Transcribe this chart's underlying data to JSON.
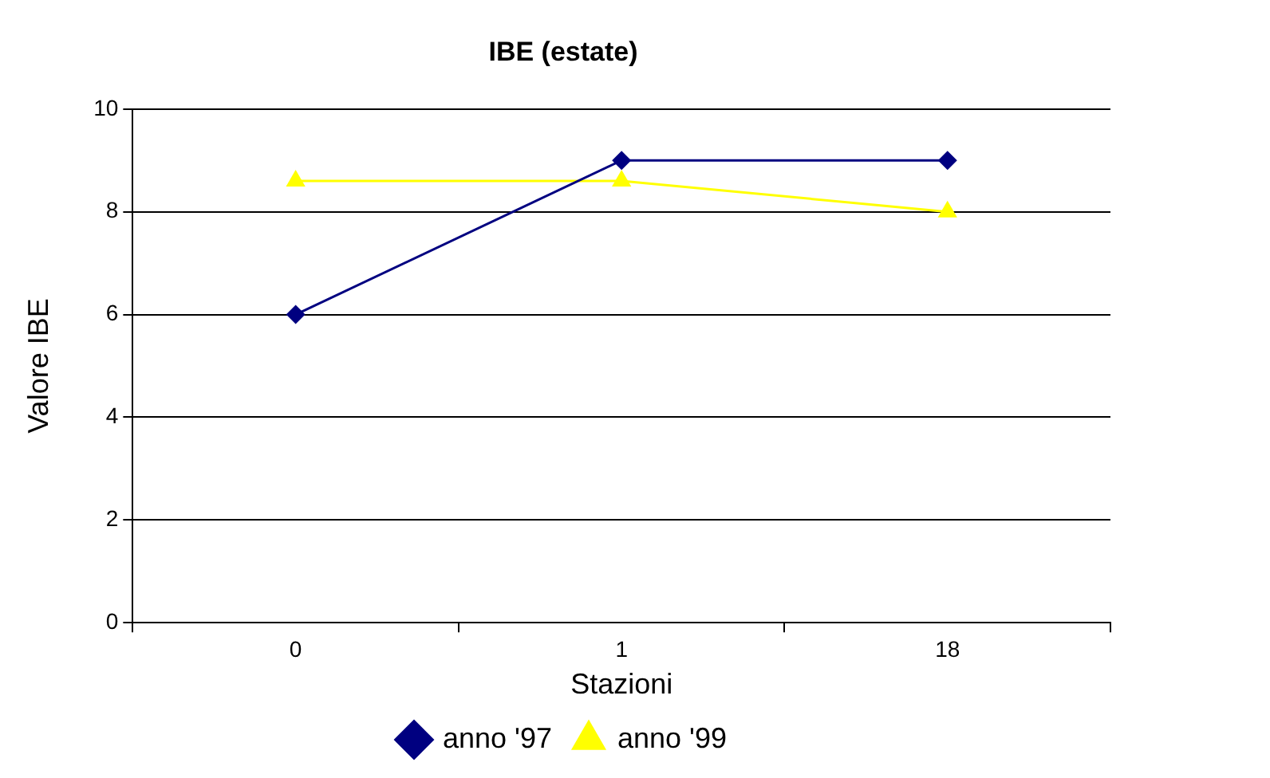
{
  "chart_data": {
    "type": "line",
    "title": "IBE (estate)",
    "xlabel": "Stazioni",
    "ylabel": "Valore IBE",
    "categories": [
      "0",
      "1",
      "18"
    ],
    "series": [
      {
        "name": "anno '97",
        "color": "#000080",
        "marker": "diamond",
        "values": [
          6,
          9,
          9
        ]
      },
      {
        "name": "anno '99",
        "color": "#ffff00",
        "marker": "triangle",
        "values": [
          8.6,
          8.6,
          8
        ]
      }
    ],
    "ylim": [
      0,
      10
    ],
    "yticks": [
      0,
      2,
      4,
      6,
      8,
      10
    ],
    "grid": "y",
    "legend": "bottom",
    "line_style": "solid"
  }
}
